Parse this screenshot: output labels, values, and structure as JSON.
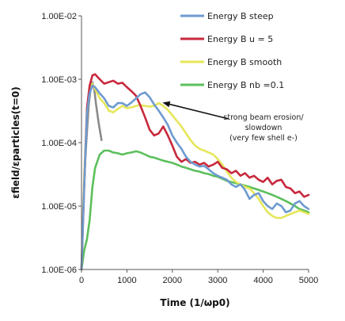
{
  "chart_data": {
    "type": "line",
    "title": "",
    "xlabel": "Time (1/ωp0)",
    "ylabel": "εfield/εparticles(t=0)",
    "xlim": [
      0,
      5000
    ],
    "ylim": [
      1e-06,
      0.01
    ],
    "y_scale": "log",
    "x_ticks": [
      "0",
      "1000",
      "2000",
      "3000",
      "4000",
      "5000"
    ],
    "y_ticks": [
      "1.00E-06",
      "1.00E-05",
      "1.00E-04",
      "1.00E-03",
      "1.00E-02"
    ],
    "legend_position": "top-right",
    "series": [
      {
        "name": "Energy B steep",
        "color": "#6e9bd0",
        "x": [
          0,
          60,
          120,
          180,
          240,
          300,
          400,
          500,
          600,
          700,
          800,
          900,
          1000,
          1100,
          1200,
          1300,
          1400,
          1500,
          1600,
          1700,
          1800,
          1900,
          2000,
          2100,
          2200,
          2300,
          2400,
          2500,
          2600,
          2700,
          2800,
          2900,
          3000,
          3100,
          3200,
          3300,
          3400,
          3500,
          3600,
          3700,
          3800,
          3900,
          4000,
          4100,
          4200,
          4300,
          4400,
          4500,
          4600,
          4700,
          4800,
          4900,
          5000
        ],
        "y": [
          1e-06,
          2e-05,
          0.0003,
          0.0006,
          0.0008,
          0.00075,
          0.0006,
          0.0005,
          0.00038,
          0.00036,
          0.00042,
          0.00042,
          0.00038,
          0.00043,
          0.0005,
          0.00058,
          0.00062,
          0.00052,
          0.0004,
          0.00032,
          0.00025,
          0.00019,
          0.00013,
          0.0001,
          8e-05,
          6e-05,
          5e-05,
          4.5e-05,
          4.2e-05,
          4.3e-05,
          3.8e-05,
          3.3e-05,
          3e-05,
          2.8e-05,
          2.6e-05,
          2.2e-05,
          2e-05,
          2.2e-05,
          1.8e-05,
          1.3e-05,
          1.5e-05,
          1.6e-05,
          1.2e-05,
          1e-05,
          9e-06,
          1.1e-05,
          1e-05,
          8e-06,
          8.5e-06,
          1.1e-05,
          1.2e-05,
          1e-05,
          9e-06
        ]
      },
      {
        "name": "Energy B u = 5",
        "color": "#c8283c",
        "x": [
          0,
          60,
          120,
          180,
          240,
          300,
          400,
          500,
          600,
          700,
          800,
          900,
          1000,
          1100,
          1200,
          1300,
          1400,
          1500,
          1600,
          1700,
          1800,
          1900,
          2000,
          2100,
          2200,
          2300,
          2400,
          2500,
          2600,
          2700,
          2800,
          2900,
          3000,
          3100,
          3200,
          3300,
          3400,
          3500,
          3600,
          3700,
          3800,
          3900,
          4000,
          4100,
          4200,
          4300,
          4400,
          4500,
          4600,
          4700,
          4800,
          4900,
          5000
        ],
        "y": [
          1e-06,
          2e-05,
          0.00035,
          0.0008,
          0.00115,
          0.0012,
          0.001,
          0.00085,
          0.0009,
          0.00095,
          0.00085,
          0.00088,
          0.00075,
          0.00065,
          0.00055,
          0.00038,
          0.00025,
          0.00016,
          0.00013,
          0.00014,
          0.00018,
          0.00013,
          9e-05,
          6e-05,
          5e-05,
          5.5e-05,
          4.8e-05,
          5e-05,
          4.5e-05,
          4.8e-05,
          4.2e-05,
          4.5e-05,
          5e-05,
          4e-05,
          3.8e-05,
          3.3e-05,
          3.6e-05,
          3e-05,
          3.3e-05,
          2.8e-05,
          3e-05,
          2.6e-05,
          2.4e-05,
          2.8e-05,
          2.2e-05,
          2.5e-05,
          2.6e-05,
          2e-05,
          1.9e-05,
          1.6e-05,
          1.7e-05,
          1.4e-05,
          1.5e-05
        ]
      },
      {
        "name": "Energy B smooth",
        "color": "#e6e65a",
        "x": [
          0,
          60,
          120,
          180,
          240,
          300,
          400,
          500,
          600,
          700,
          800,
          900,
          1000,
          1100,
          1200,
          1300,
          1400,
          1500,
          1600,
          1700,
          1800,
          1900,
          2000,
          2100,
          2200,
          2300,
          2400,
          2500,
          2600,
          2700,
          2800,
          2900,
          3000,
          3100,
          3200,
          3300,
          3400,
          3500,
          3600,
          3700,
          3800,
          3900,
          4000,
          4100,
          4200,
          4300,
          4400,
          4500,
          4600,
          4700,
          4800,
          4900,
          5000
        ],
        "y": [
          1e-06,
          3e-05,
          0.0003,
          0.00065,
          0.00085,
          0.0007,
          0.0005,
          0.00042,
          0.00032,
          0.0003,
          0.00034,
          0.00038,
          0.00035,
          0.00036,
          0.00038,
          0.00039,
          0.00038,
          0.00037,
          0.00038,
          0.00042,
          0.00038,
          0.00033,
          0.00027,
          0.00022,
          0.00018,
          0.00014,
          0.00011,
          9e-05,
          8e-05,
          7.5e-05,
          7e-05,
          6.5e-05,
          5.5e-05,
          4.5e-05,
          3.5e-05,
          2.8e-05,
          2.4e-05,
          2.2e-05,
          2e-05,
          1.9e-05,
          1.6e-05,
          1.3e-05,
          1e-05,
          8e-06,
          7e-06,
          6.5e-06,
          6.5e-06,
          7e-06,
          7.5e-06,
          8e-06,
          8.5e-06,
          8e-06,
          7.5e-06
        ]
      },
      {
        "name": "Energy B nb =0.1",
        "color": "#5cbf5c",
        "x": [
          0,
          60,
          120,
          180,
          240,
          300,
          400,
          500,
          600,
          700,
          800,
          900,
          1000,
          1100,
          1200,
          1300,
          1400,
          1500,
          1600,
          1700,
          1800,
          1900,
          2000,
          2100,
          2200,
          2300,
          2400,
          2500,
          2600,
          2700,
          2800,
          2900,
          3000,
          3100,
          3200,
          3300,
          3400,
          3500,
          3600,
          3700,
          3800,
          3900,
          4000,
          4100,
          4200,
          4300,
          4400,
          4500,
          4600,
          4700,
          4800,
          4900,
          5000
        ],
        "y": [
          1e-06,
          2e-06,
          3e-06,
          6e-06,
          2e-05,
          4e-05,
          6.5e-05,
          7.5e-05,
          7.5e-05,
          7e-05,
          6.8e-05,
          6.5e-05,
          6.8e-05,
          7e-05,
          7.3e-05,
          7e-05,
          6.5e-05,
          6e-05,
          5.8e-05,
          5.5e-05,
          5.2e-05,
          5e-05,
          4.8e-05,
          4.5e-05,
          4.2e-05,
          4e-05,
          3.8e-05,
          3.6e-05,
          3.5e-05,
          3.3e-05,
          3.2e-05,
          3e-05,
          2.9e-05,
          2.7e-05,
          2.5e-05,
          2.4e-05,
          2.3e-05,
          2.2e-05,
          2.1e-05,
          2e-05,
          1.9e-05,
          1.8e-05,
          1.7e-05,
          1.6e-05,
          1.5e-05,
          1.4e-05,
          1.3e-05,
          1.2e-05,
          1.1e-05,
          1e-05,
          9e-06,
          8.5e-06,
          8e-06
        ]
      },
      {
        "name": "",
        "color": "#8a8a8a",
        "x": [
          0,
          40,
          80,
          120,
          160,
          200,
          240,
          280,
          320,
          380,
          440
        ],
        "y": [
          1e-06,
          1e-05,
          5e-05,
          0.00015,
          0.0004,
          0.0007,
          0.0009,
          0.0007,
          0.0004,
          0.0002,
          0.00011
        ]
      }
    ],
    "annotation": {
      "lines": [
        "strong beam erosion/",
        "slowdown",
        "(very few shell e-)"
      ],
      "arrow_target": {
        "x": 1750,
        "y": 0.00043
      }
    }
  }
}
